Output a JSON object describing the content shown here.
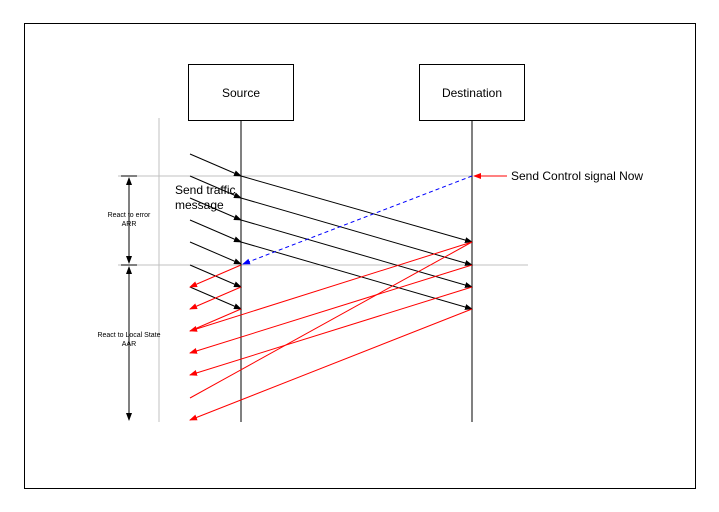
{
  "diagram": {
    "source_label": "Source",
    "destination_label": "Destination",
    "control_signal_label": "Send Control signal Now",
    "traffic_label_line1": "Send traffic",
    "traffic_label_line2": "message",
    "react_error_line1": "React to error",
    "react_error_line2": "ARR",
    "react_local_line1": "React to Local State",
    "react_local_line2": "AAR"
  },
  "colors": {
    "traffic": "#000000",
    "response": "#ff0000",
    "control": "#0000ff",
    "guide": "#c0c0c0"
  }
}
